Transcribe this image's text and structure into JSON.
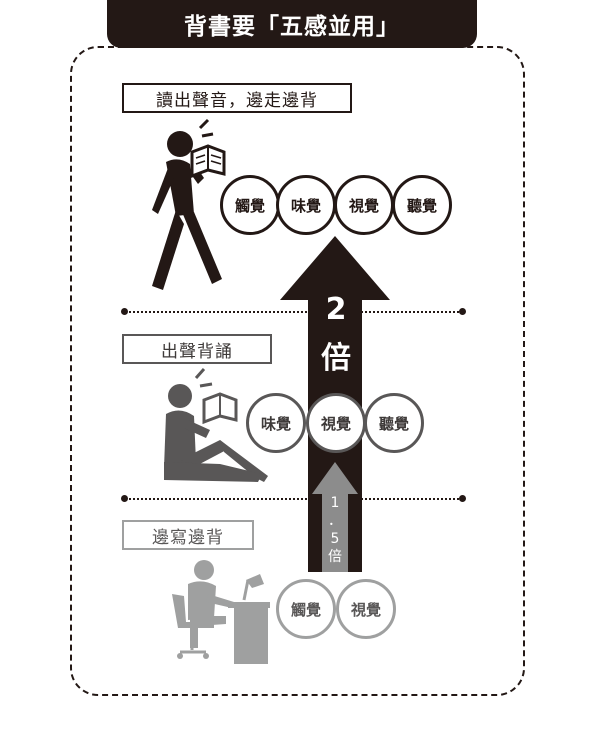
{
  "title": "背書要「五感並用」",
  "levels": [
    {
      "label": "讀出聲音，邊走邊背",
      "senses": [
        "觸覺",
        "味覺",
        "視覺",
        "聽覺"
      ]
    },
    {
      "label": "出聲背誦",
      "senses": [
        "味覺",
        "視覺",
        "聽覺"
      ]
    },
    {
      "label": "邊寫邊背",
      "senses": [
        "觸覺",
        "視覺"
      ]
    }
  ],
  "arrows": {
    "big": {
      "number": "2",
      "unit": "倍"
    },
    "small": {
      "text": "1.5倍",
      "parts": [
        "1",
        "．",
        "5",
        "倍"
      ]
    }
  },
  "colors": {
    "level1": "#231815",
    "level2": "#595757",
    "level3": "#9fa0a0",
    "arrow_small": "#8c8c8c"
  }
}
